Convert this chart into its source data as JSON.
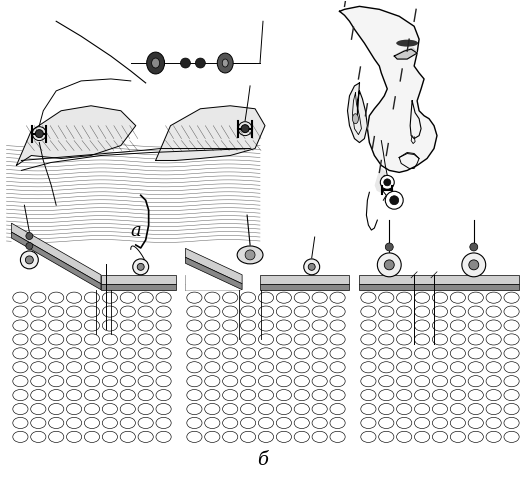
{
  "figsize": [
    5.26,
    4.82
  ],
  "dpi": 100,
  "background_color": "#ffffff",
  "label_a": "а",
  "label_b": "б",
  "label_fontsize": 13,
  "line_color": "#000000",
  "lw": 0.7
}
